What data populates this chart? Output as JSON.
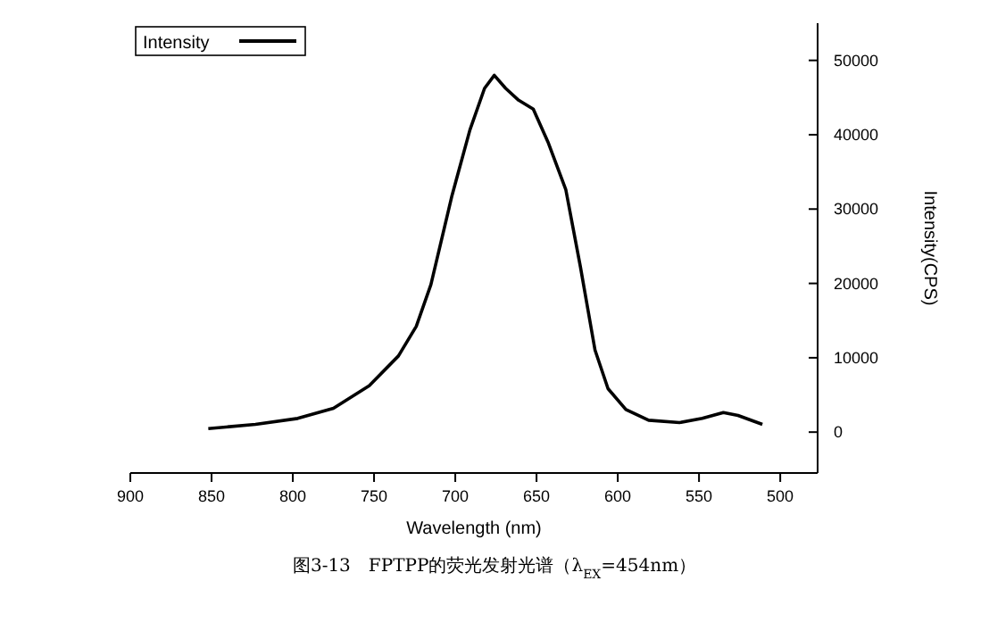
{
  "chart_data": {
    "type": "line",
    "xlabel": "Wavelength (nm)",
    "ylabel": "Intensity(CPS)",
    "annotations": [
      "图3-13　FPTPP的荧光发射光谱（λ$_{EX}$=454nm）"
    ],
    "xlim": [
      900,
      477
    ],
    "xticks": [
      900,
      850,
      800,
      750,
      700,
      650,
      600,
      550,
      500
    ],
    "ylim": [
      -5500,
      55000
    ],
    "yticks": [
      0,
      10000,
      20000,
      30000,
      40000,
      50000
    ],
    "legend": "top left",
    "grid": false,
    "marker": "none",
    "line_style": "solid",
    "series": [
      {
        "name": "Intensity",
        "color": "#000000",
        "x": [
          852,
          823,
          797,
          775,
          753,
          735,
          724,
          715,
          702,
          691,
          682,
          676,
          669,
          661,
          652,
          643,
          632,
          623,
          614,
          606,
          595,
          581,
          562,
          548,
          535,
          526,
          511
        ],
        "values": [
          480,
          1040,
          1840,
          3200,
          6240,
          10240,
          14240,
          19840,
          31840,
          40640,
          46240,
          48000,
          46240,
          44640,
          43440,
          39040,
          32640,
          22240,
          11040,
          5840,
          3040,
          1600,
          1280,
          1840,
          2640,
          2240,
          1040
        ]
      }
    ]
  }
}
